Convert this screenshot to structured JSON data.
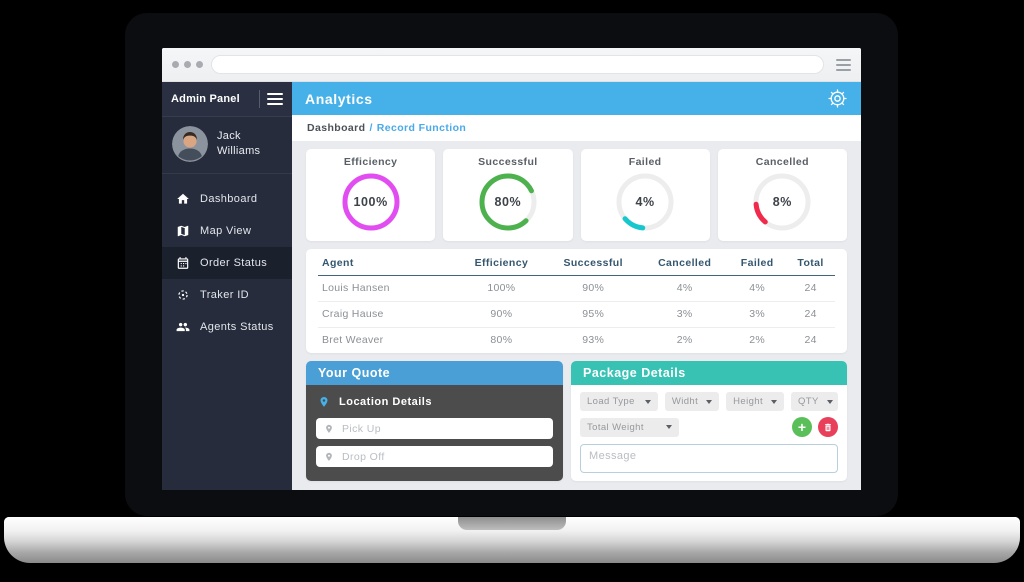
{
  "browser": {
    "url_value": ""
  },
  "sidebar": {
    "brand": "Admin Panel",
    "user": {
      "line1": "Jack",
      "line2": "Williams"
    },
    "items": [
      {
        "label": "Dashboard",
        "icon": "home",
        "active": false
      },
      {
        "label": "Map View",
        "icon": "map",
        "active": false
      },
      {
        "label": "Order Status",
        "icon": "calendar",
        "active": true
      },
      {
        "label": "Traker ID",
        "icon": "target",
        "active": false
      },
      {
        "label": "Agents Status",
        "icon": "users",
        "active": false
      }
    ]
  },
  "header": {
    "title": "Analytics",
    "gear_icon": "gear-icon"
  },
  "breadcrumb": {
    "root": "Dashboard",
    "separator": "/",
    "current": "Record Function"
  },
  "chart_data": {
    "type": "donut-gauges",
    "gauges": [
      {
        "label": "Efficiency",
        "value_percent": 100,
        "color": "#e24df2"
      },
      {
        "label": "Successful",
        "value_percent": 80,
        "color": "#4db24e"
      },
      {
        "label": "Failed",
        "value_percent": 4,
        "color": "#16c7cd"
      },
      {
        "label": "Cancelled",
        "value_percent": 8,
        "color": "#f12a4c"
      }
    ],
    "track_color": "#ededed"
  },
  "table": {
    "columns": [
      "Agent",
      "Efficiency",
      "Successful",
      "Cancelled",
      "Failed",
      "Total"
    ],
    "rows": [
      [
        "Louis Hansen",
        "100%",
        "90%",
        "4%",
        "4%",
        "24"
      ],
      [
        "Craig Hause",
        "90%",
        "95%",
        "3%",
        "3%",
        "24"
      ],
      [
        "Bret Weaver",
        "80%",
        "93%",
        "2%",
        "2%",
        "24"
      ]
    ]
  },
  "quote": {
    "title": "Your Quote",
    "section_label": "Location Details",
    "pickup_placeholder": "Pick Up",
    "dropoff_placeholder": "Drop Off"
  },
  "package": {
    "title": "Package Details",
    "dropdowns_row1": [
      "Load Type",
      "Widht",
      "Height",
      "QTY"
    ],
    "dropdowns_row2": [
      "Total Weight"
    ],
    "message_placeholder": "Message"
  },
  "colors": {
    "topbar_blue": "#45b1e8",
    "quote_header_blue": "#4aa0d6",
    "package_header_teal": "#38c2b4",
    "sidebar_dark": "#262c3b",
    "content_bg": "#e9ebef",
    "add_green": "#5bbf59",
    "delete_red": "#e8405a"
  }
}
